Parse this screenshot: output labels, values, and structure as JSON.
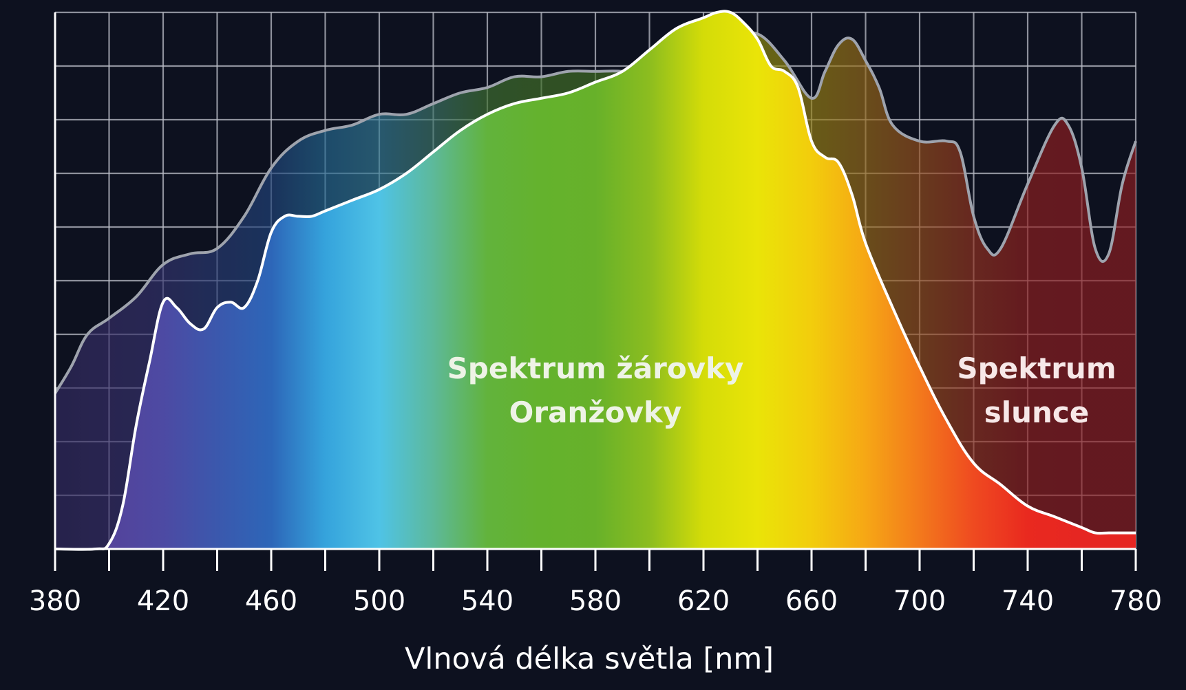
{
  "chart_data": {
    "type": "area",
    "xlabel": "Vlnová délka světla [nm]",
    "ylabel": "",
    "xlim": [
      380,
      780
    ],
    "ylim": [
      0,
      10
    ],
    "grid": true,
    "x_ticks": [
      380,
      420,
      460,
      500,
      540,
      580,
      620,
      660,
      700,
      740,
      780
    ],
    "series": [
      {
        "name": "Spektrum slunce",
        "label_lines": [
          "Spektrum",
          "slunce"
        ],
        "label_color": "#f7e8e8",
        "x": [
          380,
          386,
          392,
          400,
          410,
          420,
          430,
          440,
          450,
          460,
          470,
          480,
          490,
          500,
          510,
          520,
          530,
          540,
          550,
          560,
          570,
          580,
          590,
          600,
          610,
          620,
          630,
          640,
          650,
          660,
          665,
          670,
          675,
          680,
          685,
          690,
          700,
          710,
          715,
          720,
          725,
          730,
          740,
          750,
          755,
          760,
          765,
          770,
          775,
          780
        ],
        "values": [
          2.9,
          3.4,
          4.0,
          4.3,
          4.7,
          5.3,
          5.5,
          5.6,
          6.2,
          7.1,
          7.6,
          7.8,
          7.9,
          8.1,
          8.1,
          8.3,
          8.5,
          8.6,
          8.8,
          8.8,
          8.9,
          8.9,
          8.9,
          8.8,
          9.0,
          9.3,
          9.5,
          9.6,
          9.1,
          8.4,
          8.9,
          9.4,
          9.5,
          9.1,
          8.6,
          7.9,
          7.6,
          7.6,
          7.4,
          6.2,
          5.6,
          5.6,
          6.8,
          7.9,
          7.9,
          7.1,
          5.6,
          5.5,
          6.8,
          7.6
        ]
      },
      {
        "name": "Spektrum žárovky Oranžovky",
        "label_lines": [
          "Spektrum žárovky",
          "Oranžovky"
        ],
        "label_color": "#eef3e6",
        "x": [
          380,
          395,
          400,
          405,
          410,
          415,
          420,
          425,
          430,
          435,
          440,
          445,
          450,
          455,
          460,
          465,
          470,
          475,
          480,
          490,
          500,
          510,
          520,
          530,
          540,
          550,
          560,
          570,
          580,
          590,
          600,
          610,
          620,
          625,
          630,
          635,
          640,
          645,
          650,
          655,
          660,
          665,
          670,
          675,
          680,
          690,
          700,
          710,
          720,
          730,
          740,
          750,
          760,
          765,
          770,
          775,
          780
        ],
        "values": [
          0,
          0,
          0.1,
          0.8,
          2.3,
          3.5,
          4.6,
          4.5,
          4.2,
          4.1,
          4.5,
          4.6,
          4.5,
          5.0,
          5.9,
          6.2,
          6.2,
          6.2,
          6.3,
          6.5,
          6.7,
          7.0,
          7.4,
          7.8,
          8.1,
          8.3,
          8.4,
          8.5,
          8.7,
          8.9,
          9.3,
          9.7,
          9.9,
          10.0,
          10.0,
          9.8,
          9.5,
          9.0,
          8.9,
          8.6,
          7.6,
          7.3,
          7.2,
          6.6,
          5.7,
          4.5,
          3.4,
          2.4,
          1.6,
          1.2,
          0.8,
          0.6,
          0.4,
          0.3,
          0.3,
          0.3,
          0.3
        ]
      }
    ],
    "colors": {
      "background": "#0d111f",
      "grid": "#b9bcc6",
      "sun_outline": "#9ea3ad",
      "bulb_outline": "#ffffff",
      "spectrum_stops": [
        "#4b3c8e",
        "#54439b",
        "#4d4aa3",
        "#3b58ad",
        "#2d66b8",
        "#35a3dc",
        "#4fc3e6",
        "#5db99a",
        "#62b33c",
        "#64b22d",
        "#67b12a",
        "#8cbd1f",
        "#d4dc08",
        "#eae408",
        "#f2cd0c",
        "#f6a715",
        "#f3791c",
        "#ef4a20",
        "#e9291f",
        "#e62622",
        "#e62622"
      ]
    }
  }
}
